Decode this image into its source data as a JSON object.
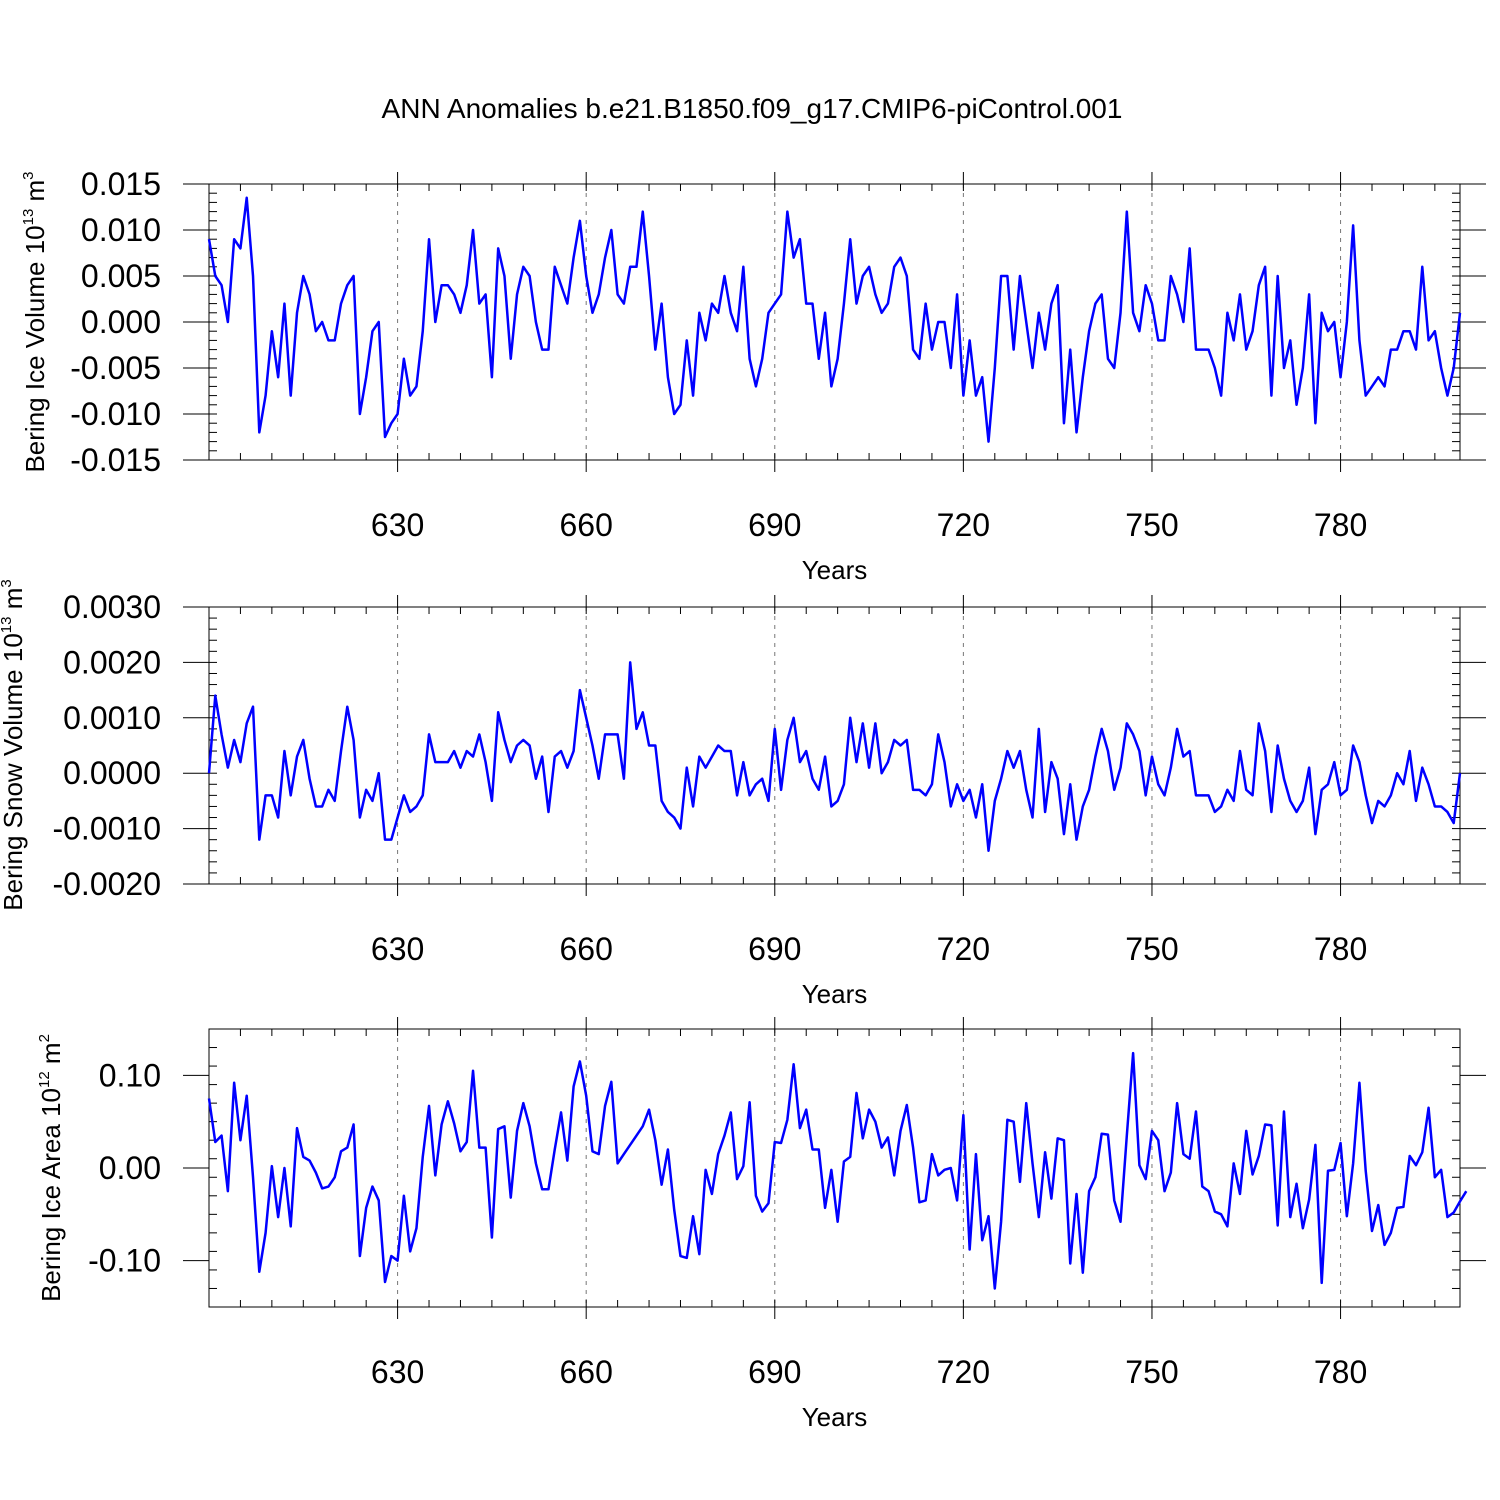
{
  "title": "ANN Anomalies b.e21.B1850.f09_g17.CMIP6-piControl.001",
  "colors": {
    "series": "#0000ff",
    "frame": "#000000",
    "grid": "#777777"
  },
  "chart_data": [
    {
      "type": "line",
      "ylabel": "Bering Ice Volume 10",
      "ylabel_exp": "13",
      "ylabel_unit": " m",
      "ylabel_unit_exp": "3",
      "xlabel": "Years",
      "xlim": [
        600,
        799
      ],
      "ylim": [
        -0.015,
        0.015
      ],
      "x_ticks": [
        630,
        660,
        690,
        720,
        750,
        780
      ],
      "x_tick_labels": [
        "630",
        "660",
        "690",
        "720",
        "750",
        "780"
      ],
      "y_ticks": [
        0.015,
        0.01,
        0.005,
        0.0,
        -0.005,
        -0.01,
        -0.015
      ],
      "y_tick_labels": [
        "0.015",
        "0.010",
        "0.005",
        "0.000",
        "-0.005",
        "-0.010",
        "-0.015"
      ],
      "y_minor_step": 0.001,
      "x_minor_step": 5,
      "grid_x": true,
      "series": [
        {
          "x_start": 600,
          "x_step": 1,
          "values": [
            0.009,
            0.005,
            0.004,
            0.0,
            0.009,
            0.008,
            0.0135,
            0.005,
            -0.012,
            -0.008,
            -0.001,
            -0.006,
            0.002,
            -0.008,
            0.001,
            0.005,
            0.003,
            -0.001,
            0.0,
            -0.002,
            -0.002,
            0.002,
            0.004,
            0.005,
            -0.01,
            -0.006,
            -0.001,
            0.0,
            -0.0125,
            -0.011,
            -0.01,
            -0.004,
            -0.008,
            -0.007,
            -0.001,
            0.009,
            0.0,
            0.004,
            0.004,
            0.003,
            0.001,
            0.004,
            0.01,
            0.002,
            0.003,
            -0.006,
            0.008,
            0.005,
            -0.004,
            0.003,
            0.006,
            0.005,
            0.0,
            -0.003,
            -0.003,
            0.006,
            0.004,
            0.002,
            0.007,
            0.011,
            0.005,
            0.001,
            0.003,
            0.007,
            0.01,
            0.003,
            0.002,
            0.006,
            0.006,
            0.012,
            0.005,
            -0.003,
            0.002,
            -0.006,
            -0.01,
            -0.009,
            -0.002,
            -0.008,
            0.001,
            -0.002,
            0.002,
            0.001,
            0.005,
            0.001,
            -0.001,
            0.006,
            -0.004,
            -0.007,
            -0.004,
            0.001,
            0.002,
            0.003,
            0.012,
            0.007,
            0.009,
            0.002,
            0.002,
            -0.004,
            0.001,
            -0.007,
            -0.004,
            0.002,
            0.009,
            0.002,
            0.005,
            0.006,
            0.003,
            0.001,
            0.002,
            0.006,
            0.007,
            0.005,
            -0.003,
            -0.004,
            0.002,
            -0.003,
            0.0,
            0.0,
            -0.005,
            0.003,
            -0.008,
            -0.002,
            -0.008,
            -0.006,
            -0.013,
            -0.005,
            0.005,
            0.005,
            -0.003,
            0.005,
            0.0,
            -0.005,
            0.001,
            -0.003,
            0.002,
            0.004,
            -0.011,
            -0.003,
            -0.012,
            -0.006,
            -0.001,
            0.002,
            0.003,
            -0.004,
            -0.005,
            0.001,
            0.012,
            0.001,
            -0.001,
            0.004,
            0.002,
            -0.002,
            -0.002,
            0.005,
            0.003,
            0.0,
            0.008,
            -0.003,
            -0.003,
            -0.003,
            -0.005,
            -0.008,
            0.001,
            -0.002,
            0.003,
            -0.003,
            -0.001,
            0.004,
            0.006,
            -0.008,
            0.005,
            -0.005,
            -0.002,
            -0.009,
            -0.005,
            0.003,
            -0.011,
            0.001,
            -0.001,
            0.0,
            -0.006,
            0.0,
            0.0105,
            -0.002,
            -0.008,
            -0.007,
            -0.006,
            -0.007,
            -0.003,
            -0.003,
            -0.001,
            -0.001,
            -0.003,
            0.006,
            -0.002,
            -0.001,
            -0.005,
            -0.008,
            -0.005,
            0.001
          ]
        }
      ]
    },
    {
      "type": "line",
      "ylabel": "Bering Snow Volume 10",
      "ylabel_exp": "13",
      "ylabel_unit": " m",
      "ylabel_unit_exp": "3",
      "xlabel": "Years",
      "xlim": [
        600,
        799
      ],
      "ylim": [
        -0.002,
        0.003
      ],
      "x_ticks": [
        630,
        660,
        690,
        720,
        750,
        780
      ],
      "x_tick_labels": [
        "630",
        "660",
        "690",
        "720",
        "750",
        "780"
      ],
      "y_ticks": [
        0.003,
        0.002,
        0.001,
        0.0,
        -0.001,
        -0.002
      ],
      "y_tick_labels": [
        "0.0030",
        "0.0020",
        "0.0010",
        "0.0000",
        "-0.0010",
        "-0.0020"
      ],
      "y_minor_step": 0.0002,
      "x_minor_step": 5,
      "grid_x": true,
      "series": [
        {
          "x_start": 600,
          "x_step": 1,
          "values": [
            -0.0,
            0.0014,
            0.0007,
            0.0001,
            0.0006,
            0.0002,
            0.0009,
            0.0012,
            -0.0012,
            -0.0004,
            -0.0004,
            -0.0008,
            0.0004,
            -0.0004,
            0.0003,
            0.0006,
            -0.0001,
            -0.0006,
            -0.0006,
            -0.0003,
            -0.0005,
            0.0004,
            0.0012,
            0.0006,
            -0.0008,
            -0.0003,
            -0.0005,
            0.0,
            -0.0012,
            -0.0012,
            -0.0008,
            -0.0004,
            -0.0007,
            -0.0006,
            -0.0004,
            0.0007,
            0.0002,
            0.0002,
            0.0002,
            0.0004,
            0.0001,
            0.0004,
            0.0003,
            0.0007,
            0.0002,
            -0.0005,
            0.0011,
            0.0006,
            0.0002,
            0.0005,
            0.0006,
            0.0005,
            -0.0001,
            0.0003,
            -0.0007,
            0.0003,
            0.0004,
            0.0001,
            0.0004,
            0.0015,
            0.001,
            0.0005,
            -0.0001,
            0.0007,
            0.0007,
            0.0007,
            -0.0001,
            0.002,
            0.0008,
            0.0011,
            0.0005,
            0.0005,
            -0.0005,
            -0.0007,
            -0.0008,
            -0.001,
            0.0001,
            -0.0006,
            0.0003,
            0.0001,
            0.0003,
            0.0005,
            0.0004,
            0.0004,
            -0.0004,
            0.0002,
            -0.0004,
            -0.0002,
            -0.0001,
            -0.0005,
            0.0008,
            -0.0003,
            0.0006,
            0.001,
            0.0002,
            0.0004,
            -0.0001,
            -0.0003,
            0.0003,
            -0.0006,
            -0.0005,
            -0.0002,
            0.001,
            0.0002,
            0.0009,
            0.0001,
            0.0009,
            0.0,
            0.0002,
            0.0006,
            0.0005,
            0.0006,
            -0.0003,
            -0.0003,
            -0.0004,
            -0.0002,
            0.0007,
            0.0002,
            -0.0006,
            -0.0002,
            -0.0005,
            -0.0003,
            -0.0008,
            -0.0002,
            -0.0014,
            -0.0005,
            -0.0001,
            0.0004,
            0.0001,
            0.0004,
            -0.0003,
            -0.0008,
            0.0008,
            -0.0007,
            0.0002,
            -0.0001,
            -0.0011,
            -0.0002,
            -0.0012,
            -0.0006,
            -0.0003,
            0.0003,
            0.0008,
            0.0004,
            -0.0003,
            0.0001,
            0.0009,
            0.0007,
            0.0004,
            -0.0004,
            0.0003,
            -0.0002,
            -0.0004,
            0.0001,
            0.0008,
            0.0003,
            0.0004,
            -0.0004,
            -0.0004,
            -0.0004,
            -0.0007,
            -0.0006,
            -0.0003,
            -0.0005,
            0.0004,
            -0.0003,
            -0.0004,
            0.0009,
            0.0004,
            -0.0007,
            0.0005,
            -0.0001,
            -0.0005,
            -0.0007,
            -0.0005,
            0.0001,
            -0.0011,
            -0.0003,
            -0.0002,
            0.0002,
            -0.0004,
            -0.0003,
            0.0005,
            0.0002,
            -0.0004,
            -0.0009,
            -0.0005,
            -0.0006,
            -0.0004,
            0.0,
            -0.0002,
            0.0004,
            -0.0005,
            0.0001,
            -0.0002,
            -0.0006,
            -0.0006,
            -0.0007,
            -0.0009,
            0.0
          ]
        }
      ]
    },
    {
      "type": "line",
      "ylabel": "Bering Ice Area 10",
      "ylabel_exp": "12",
      "ylabel_unit": " m",
      "ylabel_unit_exp": "2",
      "xlabel": "Years",
      "xlim": [
        600,
        799
      ],
      "ylim": [
        -0.15,
        0.15
      ],
      "x_ticks": [
        630,
        660,
        690,
        720,
        750,
        780
      ],
      "x_tick_labels": [
        "630",
        "660",
        "690",
        "720",
        "750",
        "780"
      ],
      "y_ticks": [
        0.1,
        0.0,
        -0.1
      ],
      "y_tick_labels": [
        "0.10",
        "0.00",
        "-0.10"
      ],
      "y_minor_step": 0.02,
      "x_minor_step": 5,
      "grid_x": true,
      "series": [
        {
          "x_start": 600,
          "x_step": 1,
          "values": [
            0.075,
            0.028,
            0.035,
            -0.025,
            0.092,
            0.03,
            0.078,
            -0.01,
            -0.112,
            -0.07,
            0.002,
            -0.053,
            0.0,
            -0.063,
            0.043,
            0.012,
            0.008,
            -0.005,
            -0.022,
            -0.02,
            -0.01,
            0.018,
            0.022,
            0.047,
            -0.095,
            -0.043,
            -0.02,
            -0.035,
            -0.123,
            -0.095,
            -0.1,
            -0.03,
            -0.09,
            -0.065,
            0.012,
            0.067,
            -0.008,
            0.047,
            0.072,
            0.048,
            0.018,
            0.028,
            0.105,
            0.022,
            0.022,
            -0.075,
            0.042,
            0.045,
            -0.032,
            0.04,
            0.07,
            0.045,
            0.005,
            -0.023,
            -0.023,
            0.02,
            0.06,
            0.008,
            0.088,
            0.115,
            0.078,
            0.018,
            0.015,
            0.067,
            0.093,
            0.005,
            0.015,
            0.025,
            0.035,
            0.045,
            0.063,
            0.03,
            -0.018,
            0.02,
            -0.045,
            -0.095,
            -0.097,
            -0.052,
            -0.093,
            -0.002,
            -0.028,
            0.015,
            0.035,
            0.06,
            -0.012,
            0.002,
            0.071,
            -0.03,
            -0.047,
            -0.038,
            0.028,
            0.027,
            0.052,
            0.112,
            0.043,
            0.063,
            0.02,
            0.02,
            -0.043,
            -0.002,
            -0.058,
            0.007,
            0.012,
            0.081,
            0.032,
            0.063,
            0.05,
            0.022,
            0.033,
            -0.008,
            0.04,
            0.068,
            0.022,
            -0.037,
            -0.035,
            0.015,
            -0.008,
            -0.002,
            0.0,
            -0.035,
            0.057,
            -0.088,
            0.015,
            -0.078,
            -0.052,
            -0.13,
            -0.058,
            0.052,
            0.05,
            -0.015,
            0.07,
            0.005,
            -0.053,
            0.017,
            -0.033,
            0.032,
            0.03,
            -0.103,
            -0.028,
            -0.113,
            -0.025,
            -0.01,
            0.037,
            0.036,
            -0.035,
            -0.058,
            0.035,
            0.124,
            0.003,
            -0.012,
            0.04,
            0.03,
            -0.025,
            -0.005,
            0.07,
            0.015,
            0.01,
            0.061,
            -0.02,
            -0.025,
            -0.047,
            -0.05,
            -0.063,
            0.005,
            -0.028,
            0.04,
            -0.007,
            0.013,
            0.047,
            0.046,
            -0.062,
            0.061,
            -0.053,
            -0.017,
            -0.065,
            -0.034,
            0.025,
            -0.124,
            -0.003,
            -0.002,
            0.027,
            -0.052,
            0.005,
            0.092,
            -0.003,
            -0.068,
            -0.04,
            -0.083,
            -0.07,
            -0.043,
            -0.042,
            0.013,
            0.003,
            0.017,
            0.065,
            -0.01,
            -0.002,
            -0.053,
            -0.048,
            -0.036,
            -0.025
          ]
        }
      ]
    }
  ]
}
